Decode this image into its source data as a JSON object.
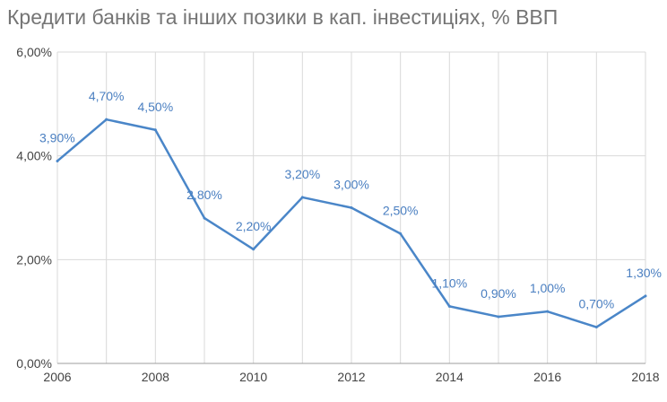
{
  "chart_data": {
    "type": "line",
    "title": "Кредити банків та інших позики в кап. інвестиціях, % ВВП",
    "xlabel": "",
    "ylabel": "",
    "x": [
      2006,
      2007,
      2008,
      2009,
      2010,
      2011,
      2012,
      2013,
      2014,
      2015,
      2016,
      2017,
      2018
    ],
    "series": [
      {
        "values": [
          3.9,
          4.7,
          4.5,
          2.8,
          2.2,
          3.2,
          3.0,
          2.5,
          1.1,
          0.9,
          1.0,
          0.7,
          1.3
        ],
        "labels": [
          "3,90%",
          "4,70%",
          "4,50%",
          "2,80%",
          "2,20%",
          "3,20%",
          "3,00%",
          "2,50%",
          "1,10%",
          "0,90%",
          "1,00%",
          "0,70%",
          "1,30%"
        ],
        "color": "#4a86c8"
      }
    ],
    "xlim": [
      2006,
      2018
    ],
    "ylim": [
      0,
      6
    ],
    "x_tick_labels": [
      "2006",
      "2008",
      "2010",
      "2012",
      "2014",
      "2016",
      "2018"
    ],
    "y_tick_labels": [
      "0,00%",
      "2,00%",
      "4,00%",
      "6,00%"
    ],
    "y_ticks": [
      0,
      2,
      4,
      6
    ],
    "grid": true,
    "legend": "none"
  }
}
